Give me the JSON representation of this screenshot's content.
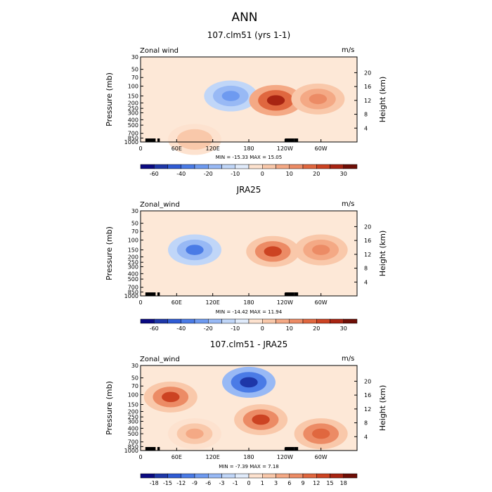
{
  "main_title": "ANN",
  "chart_data": [
    {
      "type": "heatmap",
      "title": "107.clm51 (yrs 1-1)",
      "variable_label": "Zonal wind",
      "units": "m/s",
      "ylabel": "Pressure (mb)",
      "ylabel_right": "Height (km)",
      "x_ticks": [
        "0",
        "60E",
        "120E",
        "180",
        "120W",
        "60W"
      ],
      "y_ticks": [
        "30",
        "50",
        "70",
        "100",
        "150",
        "200",
        "250",
        "300",
        "400",
        "500",
        "700",
        "850",
        "1000"
      ],
      "y_ticks_right": [
        "20",
        "16",
        "12",
        "8",
        "4"
      ],
      "stats": "MIN = -15.33   MAX =  15.05",
      "min": -15.33,
      "max": 15.05,
      "colorbar_labels": [
        "-60",
        "-40",
        "-20",
        "-10",
        "0",
        "10",
        "20",
        "30"
      ],
      "features": [
        {
          "lon": 150,
          "p": 150,
          "value": -8
        },
        {
          "lon": 225,
          "p": 180,
          "value": 15
        },
        {
          "lon": 295,
          "p": 170,
          "value": 8
        },
        {
          "lon": 90,
          "p": 900,
          "value": 4
        }
      ]
    },
    {
      "type": "heatmap",
      "title": "JRA25",
      "variable_label": "Zonal_wind",
      "units": "m/s",
      "ylabel": "Pressure (mb)",
      "ylabel_right": "Height (km)",
      "x_ticks": [
        "0",
        "60E",
        "120E",
        "180",
        "120W",
        "60W"
      ],
      "y_ticks": [
        "30",
        "50",
        "70",
        "100",
        "150",
        "200",
        "250",
        "300",
        "400",
        "500",
        "700",
        "850",
        "1000"
      ],
      "y_ticks_right": [
        "20",
        "16",
        "12",
        "8",
        "4"
      ],
      "stats": "MIN = -14.42   MAX =  11.94",
      "min": -14.42,
      "max": 11.94,
      "colorbar_labels": [
        "-60",
        "-40",
        "-20",
        "-10",
        "0",
        "10",
        "20",
        "30"
      ],
      "features": [
        {
          "lon": 90,
          "p": 150,
          "value": -9
        },
        {
          "lon": 220,
          "p": 160,
          "value": 12
        },
        {
          "lon": 300,
          "p": 150,
          "value": 8
        }
      ]
    },
    {
      "type": "heatmap",
      "title": "107.clm51 - JRA25",
      "variable_label": "Zonal_wind",
      "units": "m/s",
      "ylabel": "Pressure (mb)",
      "ylabel_right": "Height (km)",
      "x_ticks": [
        "0",
        "60E",
        "120E",
        "180",
        "120W",
        "60W"
      ],
      "y_ticks": [
        "30",
        "50",
        "70",
        "100",
        "150",
        "200",
        "250",
        "300",
        "400",
        "500",
        "700",
        "850",
        "1000"
      ],
      "y_ticks_right": [
        "20",
        "16",
        "12",
        "8",
        "4"
      ],
      "stats": "MIN = -7.39   MAX =  7.18",
      "min": -7.39,
      "max": 7.18,
      "colorbar_labels": [
        "-18",
        "-15",
        "-12",
        "-9",
        "-6",
        "-3",
        "-1",
        "0",
        "1",
        "3",
        "6",
        "9",
        "12",
        "15",
        "18"
      ],
      "features": [
        {
          "lon": 180,
          "p": 60,
          "value": -7
        },
        {
          "lon": 50,
          "p": 110,
          "value": 6
        },
        {
          "lon": 200,
          "p": 280,
          "value": 6
        },
        {
          "lon": 300,
          "p": 500,
          "value": 5
        },
        {
          "lon": 90,
          "p": 500,
          "value": 3
        }
      ]
    }
  ],
  "colors": {
    "scale16": [
      "#0a0a82",
      "#1e37a8",
      "#2f5bd4",
      "#4a7be6",
      "#6e9af0",
      "#98b9f5",
      "#c0d6f8",
      "#e0ebfb",
      "#fde2cf",
      "#f9c8aa",
      "#f4a985",
      "#ec8b65",
      "#e0673f",
      "#cc4322",
      "#a82412",
      "#6e0e06"
    ],
    "background": "#fde8d7",
    "terrain": "#000000"
  }
}
